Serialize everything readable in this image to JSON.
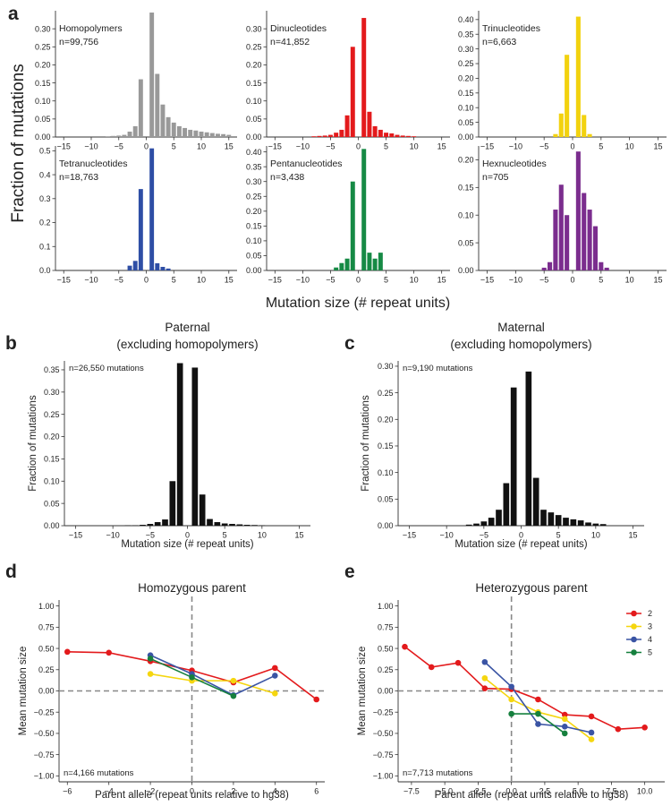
{
  "figure": {
    "panel_letters": [
      "a",
      "b",
      "c",
      "d",
      "e"
    ],
    "panel_a_ylabel": "Fraction of mutations",
    "panel_a_xlabel": "Mutation size (# repeat units)"
  },
  "chart_data": [
    {
      "id": "a1",
      "type": "bar",
      "panel": "a",
      "title": "Homopolymers",
      "n_label": "n=99,756",
      "color": "#999999",
      "xlim": [
        -16.5,
        16.5
      ],
      "ylim": [
        0,
        0.35
      ],
      "xticks": [
        -15,
        -10,
        -5,
        0,
        5,
        10,
        15
      ],
      "yticks": [
        0.0,
        0.05,
        0.1,
        0.15,
        0.2,
        0.25,
        0.3
      ],
      "yticklabels": [
        "0.00",
        "0.05",
        "0.10",
        "0.15",
        "0.20",
        "0.25",
        "0.30"
      ],
      "x": [
        -7,
        -6,
        -5,
        -4,
        -3,
        -2,
        -1,
        1,
        2,
        3,
        4,
        5,
        6,
        7,
        8,
        9,
        10,
        11,
        12,
        13,
        14,
        15
      ],
      "values": [
        0.002,
        0.003,
        0.004,
        0.006,
        0.015,
        0.03,
        0.16,
        0.345,
        0.175,
        0.09,
        0.055,
        0.04,
        0.03,
        0.025,
        0.02,
        0.018,
        0.015,
        0.013,
        0.011,
        0.009,
        0.008,
        0.006
      ]
    },
    {
      "id": "a2",
      "type": "bar",
      "panel": "a",
      "title": "Dinucleotides",
      "n_label": "n=41,852",
      "color": "#e31a1c",
      "xlim": [
        -16.5,
        16.5
      ],
      "ylim": [
        0,
        0.35
      ],
      "xticks": [
        -15,
        -10,
        -5,
        0,
        5,
        10,
        15
      ],
      "yticks": [
        0.0,
        0.05,
        0.1,
        0.15,
        0.2,
        0.25,
        0.3
      ],
      "yticklabels": [
        "0.00",
        "0.05",
        "0.10",
        "0.15",
        "0.20",
        "0.25",
        "0.30"
      ],
      "x": [
        -8,
        -7,
        -6,
        -5,
        -4,
        -3,
        -2,
        -1,
        1,
        2,
        3,
        4,
        5,
        6,
        7,
        8,
        9,
        10
      ],
      "values": [
        0.002,
        0.003,
        0.004,
        0.006,
        0.012,
        0.02,
        0.06,
        0.25,
        0.33,
        0.07,
        0.03,
        0.02,
        0.012,
        0.01,
        0.006,
        0.004,
        0.003,
        0.002
      ]
    },
    {
      "id": "a3",
      "type": "bar",
      "panel": "a",
      "title": "Trinucleotides",
      "n_label": "n=6,663",
      "color": "#f2d20f",
      "xlim": [
        -16.5,
        16.5
      ],
      "ylim": [
        0,
        0.43
      ],
      "xticks": [
        -15,
        -10,
        -5,
        0,
        5,
        10,
        15
      ],
      "yticks": [
        0.0,
        0.05,
        0.1,
        0.15,
        0.2,
        0.25,
        0.3,
        0.35,
        0.4
      ],
      "yticklabels": [
        "0.00",
        "0.05",
        "0.10",
        "0.15",
        "0.20",
        "0.25",
        "0.30",
        "0.35",
        "0.40"
      ],
      "x": [
        -3,
        -2,
        -1,
        1,
        2,
        3
      ],
      "values": [
        0.01,
        0.08,
        0.28,
        0.41,
        0.075,
        0.01
      ]
    },
    {
      "id": "a4",
      "type": "bar",
      "panel": "a",
      "title": "Tetranucleotides",
      "n_label": "n=18,763",
      "color": "#2e4ea5",
      "xlim": [
        -16.5,
        16.5
      ],
      "ylim": [
        0,
        0.52
      ],
      "xticks": [
        -15,
        -10,
        -5,
        0,
        5,
        10,
        15
      ],
      "yticks": [
        0.0,
        0.1,
        0.2,
        0.3,
        0.4,
        0.5
      ],
      "yticklabels": [
        "0.0",
        "0.1",
        "0.2",
        "0.3",
        "0.4",
        "0.5"
      ],
      "x": [
        -3,
        -2,
        -1,
        1,
        2,
        3,
        4
      ],
      "values": [
        0.02,
        0.04,
        0.34,
        0.51,
        0.03,
        0.015,
        0.008
      ]
    },
    {
      "id": "a5",
      "type": "bar",
      "panel": "a",
      "title": "Pentanucleotides",
      "n_label": "n=3,438",
      "color": "#168a45",
      "xlim": [
        -16.5,
        16.5
      ],
      "ylim": [
        0,
        0.42
      ],
      "xticks": [
        -15,
        -10,
        -5,
        0,
        5,
        10,
        15
      ],
      "yticks": [
        0.0,
        0.05,
        0.1,
        0.15,
        0.2,
        0.25,
        0.3,
        0.35,
        0.4
      ],
      "yticklabels": [
        "0.00",
        "0.05",
        "0.10",
        "0.15",
        "0.20",
        "0.25",
        "0.30",
        "0.35",
        "0.40"
      ],
      "x": [
        -4,
        -3,
        -2,
        -1,
        1,
        2,
        3,
        4
      ],
      "values": [
        0.01,
        0.025,
        0.04,
        0.3,
        0.41,
        0.06,
        0.04,
        0.06
      ]
    },
    {
      "id": "a6",
      "type": "bar",
      "panel": "a",
      "title": "Hexnucleotides",
      "n_label": "n=705",
      "color": "#7b2d8e",
      "xlim": [
        -16.5,
        16.5
      ],
      "ylim": [
        0,
        0.225
      ],
      "xticks": [
        -15,
        -10,
        -5,
        0,
        5,
        10,
        15
      ],
      "yticks": [
        0.0,
        0.05,
        0.1,
        0.15,
        0.2
      ],
      "yticklabels": [
        "0.00",
        "0.05",
        "0.10",
        "0.15",
        "0.20"
      ],
      "x": [
        -5,
        -4,
        -3,
        -2,
        -1,
        1,
        2,
        3,
        4,
        5,
        6
      ],
      "values": [
        0.005,
        0.015,
        0.11,
        0.155,
        0.1,
        0.215,
        0.14,
        0.11,
        0.08,
        0.015,
        0.005
      ]
    },
    {
      "id": "b",
      "type": "bar",
      "panel": "b",
      "title": "Paternal\n(excluding homopolymers)",
      "n_label": "n=26,550 mutations",
      "color": "#111111",
      "xlabel": "Mutation size (# repeat units)",
      "ylabel": "Fraction of mutations",
      "xlim": [
        -16.5,
        16.5
      ],
      "ylim": [
        0,
        0.37
      ],
      "xticks": [
        -15,
        -10,
        -5,
        0,
        5,
        10,
        15
      ],
      "yticks": [
        0.0,
        0.05,
        0.1,
        0.15,
        0.2,
        0.25,
        0.3,
        0.35
      ],
      "yticklabels": [
        "0.00",
        "0.05",
        "0.10",
        "0.15",
        "0.20",
        "0.25",
        "0.30",
        "0.35"
      ],
      "x": [
        -8,
        -7,
        -6,
        -5,
        -4,
        -3,
        -2,
        -1,
        1,
        2,
        3,
        4,
        5,
        6,
        7,
        8,
        9,
        10
      ],
      "values": [
        0.001,
        0.001,
        0.002,
        0.004,
        0.008,
        0.014,
        0.1,
        0.365,
        0.355,
        0.07,
        0.015,
        0.008,
        0.005,
        0.004,
        0.003,
        0.002,
        0.0015,
        0.001
      ]
    },
    {
      "id": "c",
      "type": "bar",
      "panel": "c",
      "title": "Maternal\n(excluding homopolymers)",
      "n_label": "n=9,190 mutations",
      "color": "#111111",
      "xlabel": "Mutation size (# repeat units)",
      "ylabel": "Fraction of mutations",
      "xlim": [
        -16.5,
        16.5
      ],
      "ylim": [
        0,
        0.31
      ],
      "xticks": [
        -15,
        -10,
        -5,
        0,
        5,
        10,
        15
      ],
      "yticks": [
        0.0,
        0.05,
        0.1,
        0.15,
        0.2,
        0.25,
        0.3
      ],
      "yticklabels": [
        "0.00",
        "0.05",
        "0.10",
        "0.15",
        "0.20",
        "0.25",
        "0.30"
      ],
      "x": [
        -7,
        -6,
        -5,
        -4,
        -3,
        -2,
        -1,
        1,
        2,
        3,
        4,
        5,
        6,
        7,
        8,
        9,
        10,
        11
      ],
      "values": [
        0.002,
        0.004,
        0.008,
        0.015,
        0.03,
        0.08,
        0.26,
        0.29,
        0.09,
        0.03,
        0.025,
        0.02,
        0.015,
        0.012,
        0.01,
        0.006,
        0.004,
        0.003
      ]
    },
    {
      "id": "d",
      "type": "line",
      "panel": "d",
      "title": "Homozygous parent",
      "n_label": "n=4,166 mutations",
      "xlabel": "Parent allele (repeat units relative to hg38)",
      "ylabel": "Mean mutation size",
      "xlim": [
        -6.4,
        6.4
      ],
      "ylim": [
        -1.07,
        1.07
      ],
      "xticks": [
        -6,
        -4,
        -2,
        0,
        2,
        4,
        6
      ],
      "xticklabels": [
        "−6",
        "−4",
        "−2",
        "0",
        "2",
        "4",
        "6"
      ],
      "yticks": [
        -1.0,
        -0.75,
        -0.5,
        -0.25,
        0.0,
        0.25,
        0.5,
        0.75,
        1.0
      ],
      "yticklabels": [
        "−1.00",
        "−0.75",
        "−0.50",
        "−0.25",
        "0.00",
        "0.25",
        "0.50",
        "0.75",
        "1.00"
      ],
      "series": [
        {
          "name": "2",
          "color": "#e31a1c",
          "x": [
            -6,
            -4,
            -2,
            0,
            2,
            4,
            6
          ],
          "y": [
            0.46,
            0.45,
            0.35,
            0.24,
            0.1,
            0.27,
            -0.1
          ]
        },
        {
          "name": "3",
          "color": "#f5d60f",
          "x": [
            -2,
            0,
            2,
            4
          ],
          "y": [
            0.2,
            0.12,
            0.12,
            -0.03
          ]
        },
        {
          "name": "4",
          "color": "#3a54a4",
          "x": [
            -2,
            0,
            2,
            4
          ],
          "y": [
            0.42,
            0.2,
            -0.05,
            0.18
          ]
        },
        {
          "name": "5",
          "color": "#16803e",
          "x": [
            -2,
            0,
            2
          ],
          "y": [
            0.38,
            0.16,
            -0.06
          ]
        }
      ]
    },
    {
      "id": "e",
      "type": "line",
      "panel": "e",
      "title": "Heterozygous parent",
      "n_label": "n=7,713 mutations",
      "xlabel": "Parent allele (repeat units relative to hg38)",
      "ylabel": "Mean mutation size",
      "legend": [
        "2",
        "3",
        "4",
        "5"
      ],
      "legend_position": "top-right",
      "xlim": [
        -8.5,
        11.5
      ],
      "ylim": [
        -1.07,
        1.07
      ],
      "xticks": [
        -7.5,
        -5.0,
        -2.5,
        0.0,
        2.5,
        5.0,
        7.5,
        10.0
      ],
      "xticklabels": [
        "−7.5",
        "−5.0",
        "−2.5",
        "0.0",
        "2.5",
        "5.0",
        "7.5",
        "10.0"
      ],
      "yticks": [
        -1.0,
        -0.75,
        -0.5,
        -0.25,
        0.0,
        0.25,
        0.5,
        0.75,
        1.0
      ],
      "yticklabels": [
        "−1.00",
        "−0.75",
        "−0.50",
        "−0.25",
        "0.00",
        "0.25",
        "0.50",
        "0.75",
        "1.00"
      ],
      "series": [
        {
          "name": "2",
          "color": "#e31a1c",
          "x": [
            -8,
            -6,
            -4,
            -2,
            0,
            2,
            4,
            6,
            8,
            10
          ],
          "y": [
            0.52,
            0.28,
            0.33,
            0.03,
            0.02,
            -0.1,
            -0.28,
            -0.3,
            -0.45,
            -0.43
          ]
        },
        {
          "name": "3",
          "color": "#f5d60f",
          "x": [
            -2,
            0,
            2,
            4,
            6
          ],
          "y": [
            0.15,
            -0.1,
            -0.25,
            -0.33,
            -0.57
          ]
        },
        {
          "name": "4",
          "color": "#3a54a4",
          "x": [
            -2,
            0,
            2,
            4,
            6
          ],
          "y": [
            0.34,
            0.05,
            -0.39,
            -0.42,
            -0.49
          ]
        },
        {
          "name": "5",
          "color": "#16803e",
          "x": [
            0,
            2,
            4
          ],
          "y": [
            -0.27,
            -0.27,
            -0.5
          ]
        }
      ]
    }
  ]
}
